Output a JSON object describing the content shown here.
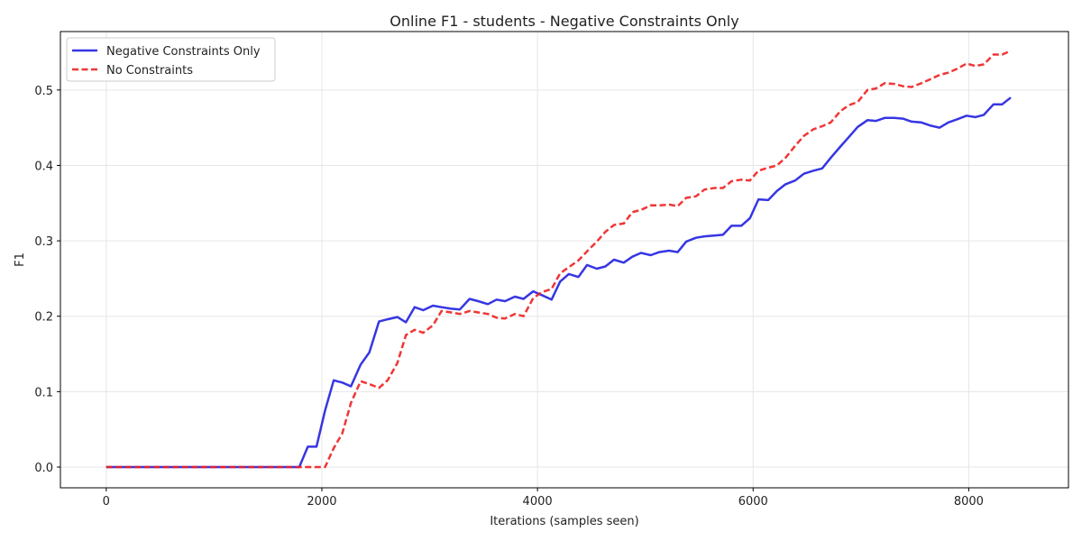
{
  "chart_data": {
    "type": "line",
    "title": "Online F1 - students - Negative Constraints Only",
    "xlabel": "Iterations (samples seen)",
    "ylabel": "F1",
    "xlim": [
      -425,
      8925
    ],
    "ylim": [
      -0.0275,
      0.5775
    ],
    "xticks": [
      0,
      2000,
      4000,
      6000,
      8000
    ],
    "xtick_labels": [
      "0",
      "2000",
      "4000",
      "6000",
      "8000"
    ],
    "yticks": [
      0.0,
      0.1,
      0.2,
      0.3,
      0.4,
      0.5
    ],
    "ytick_labels": [
      "0.0",
      "0.1",
      "0.2",
      "0.3",
      "0.4",
      "0.5"
    ],
    "grid": true,
    "legend_position": "top-left",
    "series": [
      {
        "name": "Negative Constraints Only",
        "color": "#2020e0",
        "style": "solid",
        "points": [
          [
            0,
            0.0
          ],
          [
            200,
            0.0
          ],
          [
            400,
            0.0
          ],
          [
            600,
            0.0
          ],
          [
            800,
            0.0
          ],
          [
            1000,
            0.0
          ],
          [
            1200,
            0.0
          ],
          [
            1400,
            0.0
          ],
          [
            1600,
            0.0
          ],
          [
            1790,
            0.0
          ],
          [
            1870,
            0.027
          ],
          [
            1950,
            0.027
          ],
          [
            2030,
            0.075
          ],
          [
            2110,
            0.115
          ],
          [
            2190,
            0.112
          ],
          [
            2270,
            0.107
          ],
          [
            2360,
            0.136
          ],
          [
            2440,
            0.152
          ],
          [
            2530,
            0.193
          ],
          [
            2610,
            0.196
          ],
          [
            2700,
            0.199
          ],
          [
            2780,
            0.192
          ],
          [
            2860,
            0.212
          ],
          [
            2940,
            0.208
          ],
          [
            3030,
            0.214
          ],
          [
            3110,
            0.212
          ],
          [
            3200,
            0.21
          ],
          [
            3280,
            0.209
          ],
          [
            3370,
            0.223
          ],
          [
            3450,
            0.22
          ],
          [
            3540,
            0.216
          ],
          [
            3620,
            0.222
          ],
          [
            3700,
            0.22
          ],
          [
            3790,
            0.226
          ],
          [
            3870,
            0.223
          ],
          [
            3960,
            0.233
          ],
          [
            4040,
            0.228
          ],
          [
            4130,
            0.222
          ],
          [
            4210,
            0.246
          ],
          [
            4290,
            0.256
          ],
          [
            4380,
            0.252
          ],
          [
            4460,
            0.268
          ],
          [
            4550,
            0.263
          ],
          [
            4630,
            0.266
          ],
          [
            4710,
            0.275
          ],
          [
            4800,
            0.271
          ],
          [
            4880,
            0.279
          ],
          [
            4960,
            0.284
          ],
          [
            5050,
            0.281
          ],
          [
            5130,
            0.285
          ],
          [
            5220,
            0.287
          ],
          [
            5300,
            0.285
          ],
          [
            5380,
            0.299
          ],
          [
            5470,
            0.304
          ],
          [
            5550,
            0.306
          ],
          [
            5640,
            0.307
          ],
          [
            5720,
            0.308
          ],
          [
            5800,
            0.32
          ],
          [
            5890,
            0.32
          ],
          [
            5970,
            0.33
          ],
          [
            6050,
            0.355
          ],
          [
            6140,
            0.354
          ],
          [
            6220,
            0.366
          ],
          [
            6300,
            0.375
          ],
          [
            6390,
            0.38
          ],
          [
            6470,
            0.389
          ],
          [
            6560,
            0.393
          ],
          [
            6640,
            0.396
          ],
          [
            6720,
            0.41
          ],
          [
            6810,
            0.425
          ],
          [
            6890,
            0.438
          ],
          [
            6970,
            0.451
          ],
          [
            7060,
            0.46
          ],
          [
            7140,
            0.459
          ],
          [
            7220,
            0.463
          ],
          [
            7310,
            0.463
          ],
          [
            7390,
            0.462
          ],
          [
            7470,
            0.458
          ],
          [
            7560,
            0.457
          ],
          [
            7640,
            0.453
          ],
          [
            7730,
            0.45
          ],
          [
            7810,
            0.457
          ],
          [
            7890,
            0.461
          ],
          [
            7980,
            0.466
          ],
          [
            8060,
            0.464
          ],
          [
            8140,
            0.467
          ],
          [
            8230,
            0.481
          ],
          [
            8310,
            0.481
          ],
          [
            8390,
            0.49
          ]
        ]
      },
      {
        "name": "No Constraints",
        "color": "#ee2020",
        "style": "dashed",
        "points": [
          [
            0,
            0.0
          ],
          [
            400,
            0.0
          ],
          [
            800,
            0.0
          ],
          [
            1200,
            0.0
          ],
          [
            1600,
            0.0
          ],
          [
            1790,
            0.0
          ],
          [
            1950,
            0.0
          ],
          [
            2030,
            0.0
          ],
          [
            2110,
            0.025
          ],
          [
            2190,
            0.045
          ],
          [
            2270,
            0.085
          ],
          [
            2360,
            0.114
          ],
          [
            2440,
            0.11
          ],
          [
            2530,
            0.105
          ],
          [
            2610,
            0.115
          ],
          [
            2700,
            0.138
          ],
          [
            2780,
            0.175
          ],
          [
            2860,
            0.182
          ],
          [
            2940,
            0.178
          ],
          [
            3030,
            0.188
          ],
          [
            3110,
            0.207
          ],
          [
            3200,
            0.205
          ],
          [
            3280,
            0.203
          ],
          [
            3370,
            0.207
          ],
          [
            3450,
            0.205
          ],
          [
            3540,
            0.203
          ],
          [
            3620,
            0.198
          ],
          [
            3700,
            0.197
          ],
          [
            3790,
            0.203
          ],
          [
            3870,
            0.2
          ],
          [
            3960,
            0.224
          ],
          [
            4040,
            0.232
          ],
          [
            4130,
            0.236
          ],
          [
            4210,
            0.257
          ],
          [
            4290,
            0.265
          ],
          [
            4380,
            0.274
          ],
          [
            4460,
            0.286
          ],
          [
            4550,
            0.299
          ],
          [
            4630,
            0.312
          ],
          [
            4710,
            0.321
          ],
          [
            4800,
            0.323
          ],
          [
            4880,
            0.338
          ],
          [
            4960,
            0.341
          ],
          [
            5050,
            0.347
          ],
          [
            5130,
            0.347
          ],
          [
            5220,
            0.348
          ],
          [
            5300,
            0.346
          ],
          [
            5380,
            0.357
          ],
          [
            5470,
            0.359
          ],
          [
            5550,
            0.368
          ],
          [
            5640,
            0.37
          ],
          [
            5720,
            0.37
          ],
          [
            5800,
            0.379
          ],
          [
            5890,
            0.381
          ],
          [
            5970,
            0.38
          ],
          [
            6050,
            0.393
          ],
          [
            6140,
            0.397
          ],
          [
            6220,
            0.4
          ],
          [
            6300,
            0.41
          ],
          [
            6390,
            0.426
          ],
          [
            6470,
            0.439
          ],
          [
            6560,
            0.448
          ],
          [
            6640,
            0.452
          ],
          [
            6720,
            0.457
          ],
          [
            6810,
            0.472
          ],
          [
            6890,
            0.48
          ],
          [
            6970,
            0.484
          ],
          [
            7060,
            0.5
          ],
          [
            7140,
            0.502
          ],
          [
            7220,
            0.509
          ],
          [
            7310,
            0.508
          ],
          [
            7390,
            0.505
          ],
          [
            7470,
            0.504
          ],
          [
            7560,
            0.509
          ],
          [
            7640,
            0.514
          ],
          [
            7730,
            0.52
          ],
          [
            7810,
            0.523
          ],
          [
            7890,
            0.528
          ],
          [
            7980,
            0.535
          ],
          [
            8060,
            0.532
          ],
          [
            8140,
            0.534
          ],
          [
            8230,
            0.547
          ],
          [
            8310,
            0.547
          ],
          [
            8390,
            0.552
          ]
        ]
      }
    ]
  }
}
